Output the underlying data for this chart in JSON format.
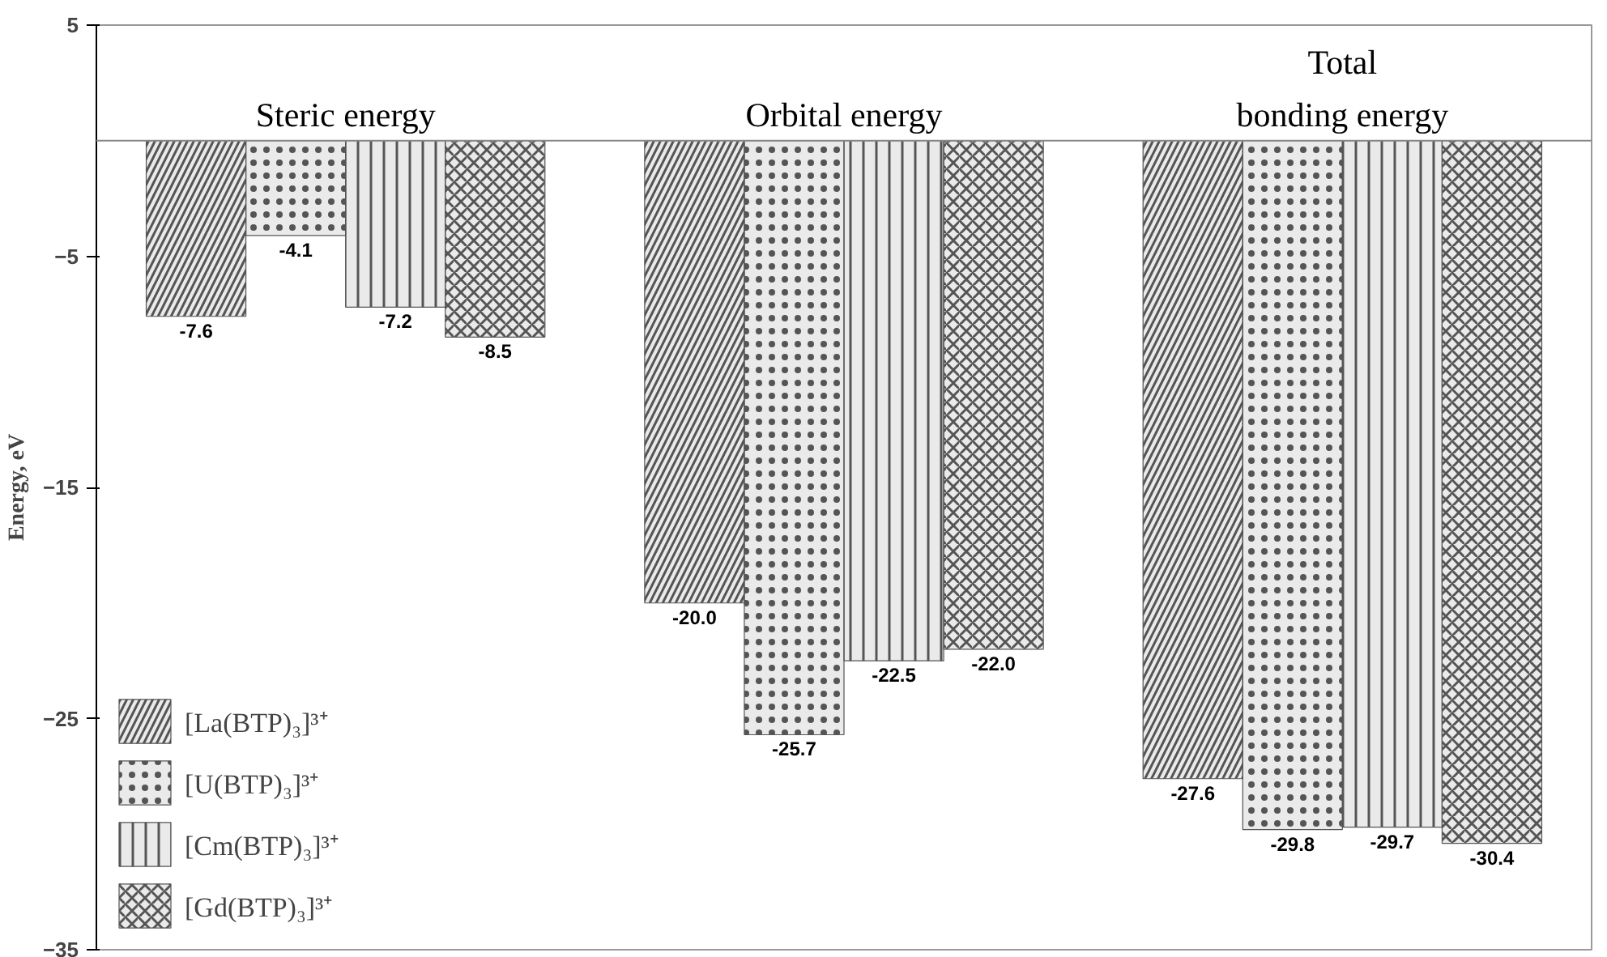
{
  "chart_data": {
    "type": "bar",
    "ylabel": "Energy, eV",
    "categories": [
      "Steric energy",
      "Orbital energy",
      "Total\nbonding energy"
    ],
    "ylim": [
      -35,
      5
    ],
    "yticks": [
      5,
      -5,
      -15,
      -25,
      -35
    ],
    "grid": false,
    "legend": "bottom left",
    "tick_labels": "y",
    "series": [
      {
        "name": "[La(BTP)₃]³⁺",
        "color": "#555555",
        "values": [
          -7.6,
          -20.0,
          -27.6
        ],
        "value_labels": [
          "-7.6",
          "-20.0",
          "-27.6"
        ]
      },
      {
        "name": "[U(BTP)₃]³⁺",
        "color": "#555555",
        "values": [
          -4.1,
          -25.7,
          -29.8
        ],
        "value_labels": [
          "-4.1",
          "-25.7",
          "-29.8"
        ]
      },
      {
        "name": "[Cm(BTP)₃]³⁺",
        "color": "#555555",
        "values": [
          -7.2,
          -22.5,
          -29.7
        ],
        "value_labels": [
          "-7.2",
          "-22.5",
          "-29.7"
        ]
      },
      {
        "name": "[Gd(BTP)₃]³⁺",
        "color": "#555555",
        "values": [
          -8.5,
          -22.0,
          -30.4
        ],
        "value_labels": [
          "-8.5",
          "-22.0",
          "-30.4"
        ]
      }
    ]
  }
}
